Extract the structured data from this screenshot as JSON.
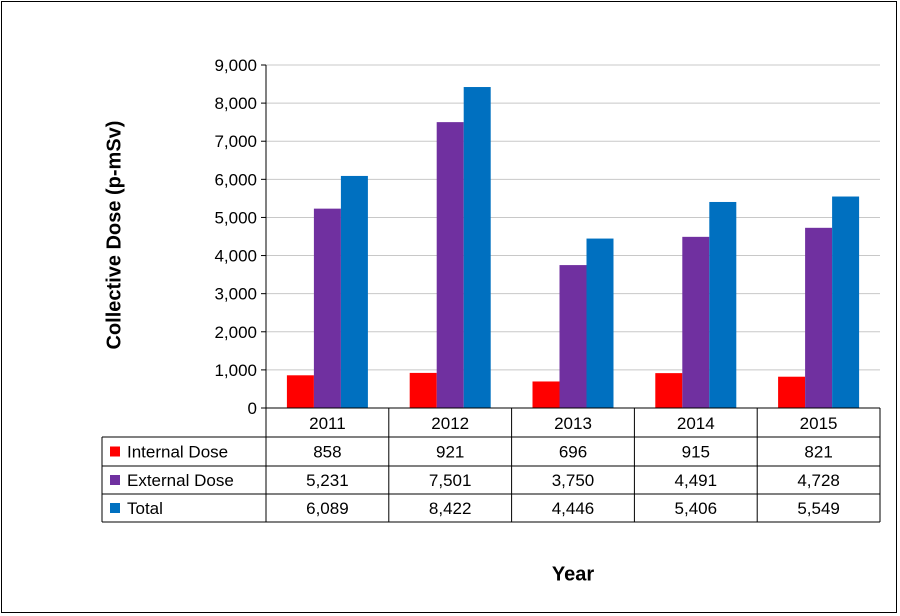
{
  "chart_data": {
    "type": "bar",
    "categories": [
      "2011",
      "2012",
      "2013",
      "2014",
      "2015"
    ],
    "series": [
      {
        "name": "Internal Dose",
        "color": "#ff0000",
        "values": [
          858,
          921,
          696,
          915,
          821
        ],
        "labels": [
          "858",
          "921",
          "696",
          "915",
          "821"
        ]
      },
      {
        "name": "External Dose",
        "color": "#7030a0",
        "values": [
          5231,
          7501,
          3750,
          4491,
          4728
        ],
        "labels": [
          "5,231",
          "7,501",
          "3,750",
          "4,491",
          "4,728"
        ]
      },
      {
        "name": "Total",
        "color": "#0070c0",
        "values": [
          6089,
          8422,
          4446,
          5406,
          5549
        ],
        "labels": [
          "6,089",
          "8,422",
          "4,446",
          "5,406",
          "5,549"
        ]
      }
    ],
    "ylabel": "Collective Dose (p-mSv)",
    "xlabel": "Year",
    "ylim": [
      0,
      9000
    ],
    "yticks": [
      "0",
      "1,000",
      "2,000",
      "3,000",
      "4,000",
      "5,000",
      "6,000",
      "7,000",
      "8,000",
      "9,000"
    ],
    "grid": true,
    "legend": "data-table"
  }
}
